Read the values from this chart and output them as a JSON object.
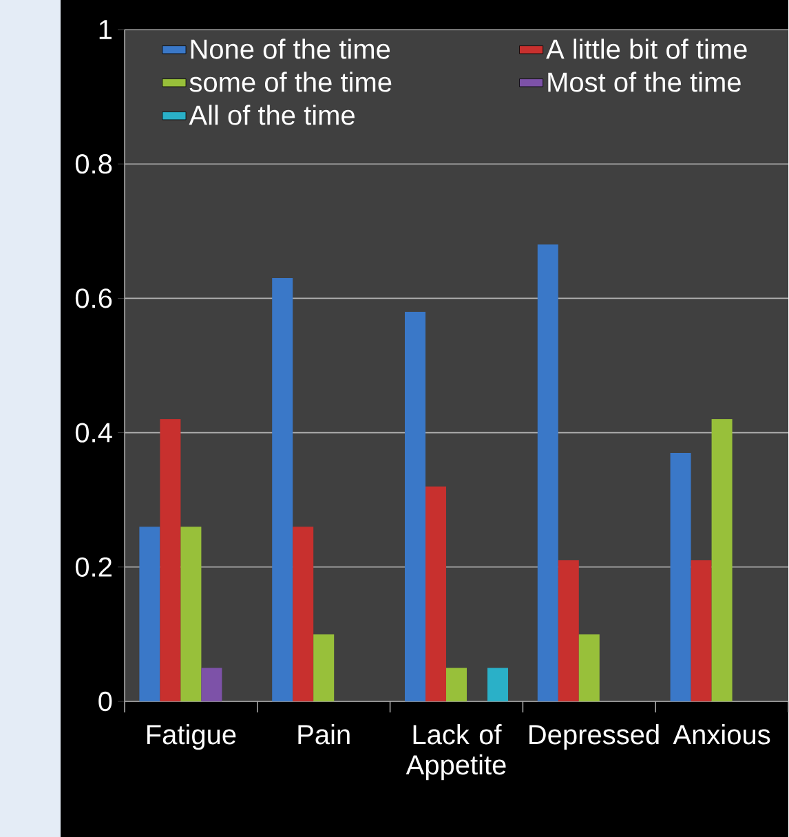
{
  "chart_data": {
    "type": "bar",
    "categories": [
      "Fatigue",
      "Pain",
      "Lack of Appetite",
      "Depressed",
      "Anxious"
    ],
    "series": [
      {
        "name": "None of the time",
        "color": "#3a78c8",
        "values": [
          0.26,
          0.63,
          0.58,
          0.68,
          0.37
        ]
      },
      {
        "name": "A little bit of time",
        "color": "#c8302e",
        "values": [
          0.42,
          0.26,
          0.32,
          0.21,
          0.21
        ]
      },
      {
        "name": "some of the time",
        "color": "#98c03a",
        "values": [
          0.26,
          0.1,
          0.05,
          0.1,
          0.42
        ]
      },
      {
        "name": "Most of the time",
        "color": "#7d52a8",
        "values": [
          0.05,
          0,
          0,
          0,
          0
        ]
      },
      {
        "name": "All of the time",
        "color": "#2ab0c8",
        "values": [
          0,
          0,
          0.05,
          0,
          0
        ]
      }
    ],
    "ylim": [
      0,
      1
    ],
    "yticks": [
      0,
      0.2,
      0.4,
      0.6,
      0.8,
      1
    ],
    "grid": "y",
    "legend": "top"
  }
}
